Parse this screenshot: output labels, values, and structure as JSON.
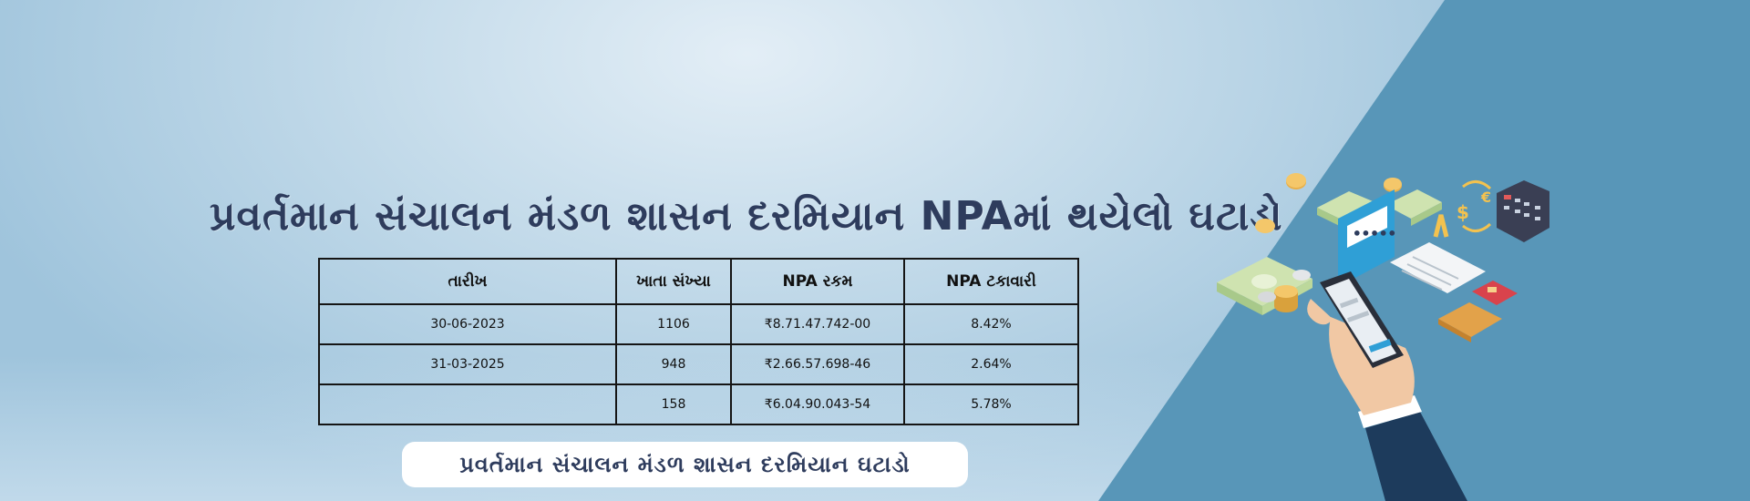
{
  "banner": {
    "title": "પ્રવર્તમાન સંચાલન મંડળ શાસન દરમિયાન NPAમાં થયેલો ઘટાડો",
    "subtitle": "પ્રવર્તમાન સંચાલન મંડળ શાસન દરમિયાન ઘટાડો",
    "colors": {
      "background": "#b9d5e8",
      "right_panel": "#5896b8",
      "title_text": "#2e3c5d",
      "table_border": "#151515"
    }
  },
  "table": {
    "headers": [
      "તારીખ",
      "ખાતા સંખ્યા",
      "NPA રકમ",
      "NPA ટકાવારી"
    ],
    "rows": [
      [
        "30-06-2023",
        "1106",
        "₹8.71.47.742-00",
        "8.42%"
      ],
      [
        "31-03-2025",
        "948",
        "₹2.66.57.698-46",
        "2.64%"
      ],
      [
        "",
        "158",
        "₹6.04.90.043-54",
        "5.78%"
      ]
    ]
  },
  "illustration": {
    "icons": [
      "smartphone-hand-icon",
      "cash-stack-icon",
      "coins-icon",
      "credit-card-icon",
      "receipt-icon",
      "currency-exchange-icon",
      "calculator-icon",
      "chat-bubble-icon"
    ],
    "phone_bubble_text": "•••••"
  }
}
